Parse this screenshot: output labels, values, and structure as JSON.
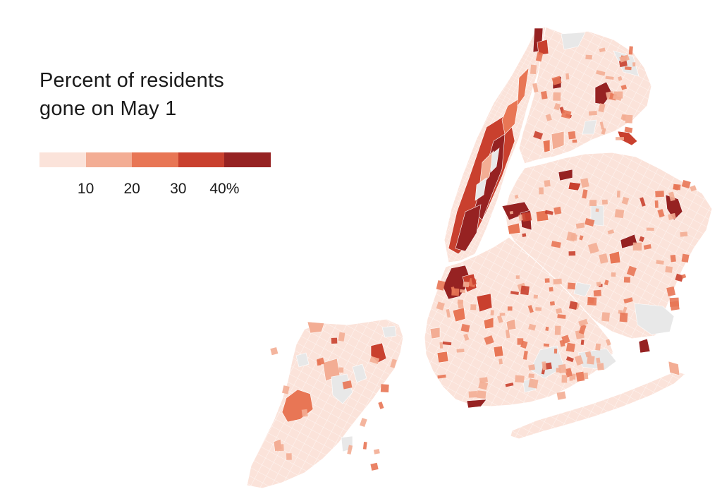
{
  "legend": {
    "title_line1": "Percent of residents",
    "title_line2": "gone on May 1",
    "bins": [
      {
        "min": 0,
        "max": 10,
        "color": "#fbe3da"
      },
      {
        "min": 10,
        "max": 20,
        "color": "#f3ad94"
      },
      {
        "min": 20,
        "max": 30,
        "color": "#e87655"
      },
      {
        "min": 30,
        "max": 40,
        "color": "#c9402e"
      },
      {
        "min": 40,
        "max": 50,
        "color": "#962222"
      }
    ],
    "ticks": [
      "10",
      "20",
      "30",
      "40%"
    ]
  },
  "map": {
    "no_data_color": "#e8e8e8",
    "base_color": "#fbe3da",
    "boundary_color": "#ffffff",
    "regions": [
      "Staten Island",
      "Manhattan",
      "Bronx",
      "Brooklyn",
      "Queens"
    ]
  }
}
